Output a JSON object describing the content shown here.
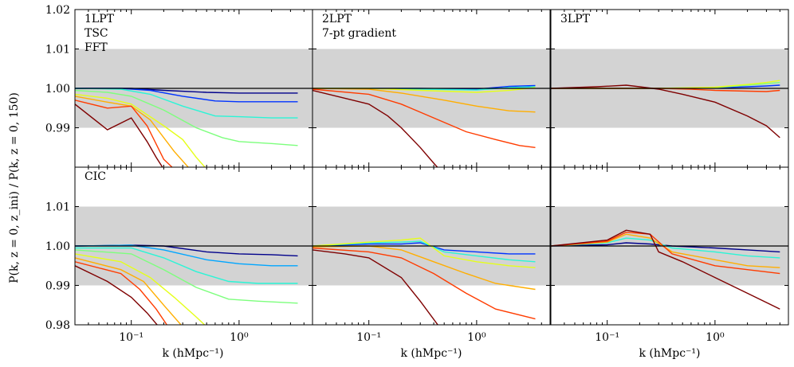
{
  "figure": {
    "ylabel": "P(k, z = 0, z_ini) / P(k, z = 0, 150)",
    "xlabel": "k (hMpc⁻¹)",
    "band_color": "#d3d3d3",
    "reference_line_color": "#000000",
    "colormap": "jet"
  },
  "chart_data": {
    "type": "line",
    "layout": "2x3 panel grid, shared axes",
    "xscale": "log",
    "xlim": [
      0.03,
      4.8
    ],
    "xticks": [
      0.1,
      1
    ],
    "xtick_labels": [
      "10⁻¹",
      "10⁰"
    ],
    "top_row": {
      "ylim": [
        0.98,
        1.02
      ],
      "yticks": [
        1.02,
        1.01,
        1.0,
        0.99
      ],
      "ytick_labels": [
        "1.02",
        "1.01",
        "1.00",
        "0.99"
      ]
    },
    "bottom_row": {
      "ylim": [
        0.98,
        1.02
      ],
      "yticks": [
        1.01,
        1.0,
        0.99,
        0.98
      ],
      "ytick_labels": [
        "1.01",
        "1.00",
        "0.99",
        "0.98"
      ]
    },
    "shaded_band": [
      0.99,
      1.01
    ],
    "reference_y": 1.0,
    "series_colors": [
      "#00008b",
      "#0033ff",
      "#00a6ff",
      "#2af5d6",
      "#7dff7d",
      "#e5ff1a",
      "#ffae00",
      "#ff3c00",
      "#c00000",
      "#7f0000"
    ],
    "panels": [
      {
        "id": "top-1lpt",
        "row": 0,
        "col": 0,
        "label_lines": [
          "1LPT",
          "TSC",
          "FFT"
        ],
        "series": [
          {
            "color_index": 0,
            "x": [
              0.03,
              0.1,
              0.2,
              0.5,
              1,
              2,
              3.5
            ],
            "y": [
              1.0,
              1.0,
              0.9995,
              0.999,
              0.9988,
              0.9988,
              0.9988
            ]
          },
          {
            "color_index": 1,
            "x": [
              0.03,
              0.08,
              0.15,
              0.3,
              0.6,
              1,
              2,
              3.5
            ],
            "y": [
              1.0,
              1.0,
              0.9995,
              0.998,
              0.9968,
              0.9966,
              0.9966,
              0.9966
            ]
          },
          {
            "color_index": 3,
            "x": [
              0.03,
              0.08,
              0.15,
              0.3,
              0.6,
              1,
              2,
              3.5
            ],
            "y": [
              1.0,
              0.9998,
              0.9985,
              0.9955,
              0.993,
              0.9928,
              0.9925,
              0.9925
            ]
          },
          {
            "color_index": 4,
            "x": [
              0.03,
              0.06,
              0.1,
              0.2,
              0.4,
              0.7,
              1,
              2,
              3.5
            ],
            "y": [
              0.9995,
              0.999,
              0.998,
              0.9945,
              0.99,
              0.9875,
              0.9865,
              0.986,
              0.9855
            ]
          },
          {
            "color_index": 5,
            "x": [
              0.03,
              0.06,
              0.1,
              0.2,
              0.3,
              0.4,
              0.5
            ],
            "y": [
              0.9985,
              0.9975,
              0.996,
              0.9905,
              0.987,
              0.9825,
              0.9795
            ]
          },
          {
            "color_index": 6,
            "x": [
              0.03,
              0.06,
              0.1,
              0.15,
              0.25,
              0.35
            ],
            "y": [
              0.998,
              0.9965,
              0.9955,
              0.992,
              0.984,
              0.9795
            ]
          },
          {
            "color_index": 7,
            "x": [
              0.03,
              0.06,
              0.1,
              0.14,
              0.2,
              0.25
            ],
            "y": [
              0.997,
              0.995,
              0.9955,
              0.9905,
              0.982,
              0.9795
            ]
          },
          {
            "color_index": 9,
            "x": [
              0.03,
              0.06,
              0.1,
              0.14,
              0.17,
              0.2
            ],
            "y": [
              0.996,
              0.9895,
              0.9925,
              0.9865,
              0.9825,
              0.9795
            ]
          }
        ]
      },
      {
        "id": "top-2lpt",
        "row": 0,
        "col": 1,
        "label_lines": [
          "2LPT",
          "7-pt gradient"
        ],
        "series": [
          {
            "color_index": 1,
            "x": [
              0.03,
              0.1,
              0.3,
              1,
              2,
              3.5
            ],
            "y": [
              1.0,
              1.0,
              1.0,
              0.9998,
              1.0005,
              1.0007
            ]
          },
          {
            "color_index": 3,
            "x": [
              0.03,
              0.1,
              0.3,
              1,
              2,
              3.5
            ],
            "y": [
              1.0,
              1.0,
              0.9998,
              0.9996,
              1.0002,
              1.0004
            ]
          },
          {
            "color_index": 5,
            "x": [
              0.03,
              0.1,
              0.3,
              1,
              2,
              3.5
            ],
            "y": [
              1.0,
              1.0,
              0.9995,
              0.999,
              0.9995,
              1.0002
            ]
          },
          {
            "color_index": 6,
            "x": [
              0.03,
              0.1,
              0.2,
              0.5,
              1,
              2,
              3.5
            ],
            "y": [
              1.0,
              0.9998,
              0.9988,
              0.997,
              0.9955,
              0.9943,
              0.994
            ]
          },
          {
            "color_index": 7,
            "x": [
              0.03,
              0.1,
              0.2,
              0.4,
              0.8,
              1.5,
              2.5,
              3.5
            ],
            "y": [
              0.9998,
              0.9985,
              0.996,
              0.9925,
              0.989,
              0.987,
              0.9855,
              0.985
            ]
          },
          {
            "color_index": 9,
            "x": [
              0.03,
              0.06,
              0.1,
              0.15,
              0.2,
              0.3,
              0.4,
              0.45
            ],
            "y": [
              0.9995,
              0.9975,
              0.996,
              0.993,
              0.99,
              0.985,
              0.981,
              0.9795
            ]
          }
        ]
      },
      {
        "id": "top-3lpt",
        "row": 0,
        "col": 2,
        "label_lines": [
          "3LPT"
        ],
        "series": [
          {
            "color_index": 1,
            "x": [
              0.03,
              0.3,
              1,
              2,
              3,
              4
            ],
            "y": [
              1.0,
              1.0,
              1.0001,
              1.0004,
              1.0006,
              1.0008
            ]
          },
          {
            "color_index": 4,
            "x": [
              0.03,
              0.3,
              1,
              2,
              3,
              4
            ],
            "y": [
              1.0,
              1.0,
              1.0002,
              1.0008,
              1.0012,
              1.0015
            ]
          },
          {
            "color_index": 5,
            "x": [
              0.03,
              0.3,
              1,
              2,
              3,
              4
            ],
            "y": [
              1.0,
              1.0,
              1.0003,
              1.001,
              1.0015,
              1.002
            ]
          },
          {
            "color_index": 7,
            "x": [
              0.03,
              0.3,
              0.6,
              1,
              2,
              3,
              4
            ],
            "y": [
              1.0,
              1.0,
              0.9998,
              0.9995,
              0.9993,
              0.9992,
              0.9995
            ]
          },
          {
            "color_index": 9,
            "x": [
              0.03,
              0.08,
              0.15,
              0.2,
              0.3,
              0.5,
              1,
              2,
              3,
              4
            ],
            "y": [
              1.0,
              1.0004,
              1.0008,
              1.0004,
              0.9998,
              0.9985,
              0.9965,
              0.993,
              0.9905,
              0.9875
            ]
          }
        ]
      },
      {
        "id": "bottom-1lpt",
        "row": 1,
        "col": 0,
        "label_lines": [
          "CIC"
        ],
        "series": [
          {
            "color_index": 0,
            "x": [
              0.03,
              0.1,
              0.2,
              0.5,
              1,
              2,
              3.5
            ],
            "y": [
              1.0,
              1.0002,
              1.0,
              0.9985,
              0.998,
              0.9978,
              0.9975
            ]
          },
          {
            "color_index": 2,
            "x": [
              0.03,
              0.1,
              0.2,
              0.5,
              1,
              2,
              3.5
            ],
            "y": [
              1.0,
              1.0002,
              0.999,
              0.9965,
              0.9955,
              0.995,
              0.995
            ]
          },
          {
            "color_index": 3,
            "x": [
              0.03,
              0.1,
              0.2,
              0.4,
              0.8,
              1.5,
              3.5
            ],
            "y": [
              0.9995,
              0.9995,
              0.997,
              0.9935,
              0.991,
              0.9905,
              0.9905
            ]
          },
          {
            "color_index": 4,
            "x": [
              0.03,
              0.1,
              0.2,
              0.4,
              0.8,
              1.5,
              3.5
            ],
            "y": [
              0.999,
              0.998,
              0.994,
              0.9895,
              0.9865,
              0.986,
              0.9855
            ]
          },
          {
            "color_index": 5,
            "x": [
              0.03,
              0.08,
              0.15,
              0.25,
              0.4,
              0.5
            ],
            "y": [
              0.998,
              0.996,
              0.992,
              0.987,
              0.982,
              0.9795
            ]
          },
          {
            "color_index": 6,
            "x": [
              0.03,
              0.08,
              0.13,
              0.2,
              0.3
            ],
            "y": [
              0.997,
              0.994,
              0.991,
              0.985,
              0.9795
            ]
          },
          {
            "color_index": 7,
            "x": [
              0.03,
              0.08,
              0.12,
              0.17,
              0.22
            ],
            "y": [
              0.996,
              0.993,
              0.989,
              0.984,
              0.9795
            ]
          },
          {
            "color_index": 9,
            "x": [
              0.03,
              0.06,
              0.1,
              0.14,
              0.18
            ],
            "y": [
              0.995,
              0.991,
              0.987,
              0.983,
              0.9795
            ]
          }
        ]
      },
      {
        "id": "bottom-2lpt",
        "row": 1,
        "col": 1,
        "label_lines": [],
        "series": [
          {
            "color_index": 1,
            "x": [
              0.03,
              0.1,
              0.2,
              0.3,
              0.5,
              1,
              2,
              3.5
            ],
            "y": [
              1.0,
              1.0005,
              1.0005,
              1.0008,
              0.999,
              0.9985,
              0.998,
              0.998
            ]
          },
          {
            "color_index": 3,
            "x": [
              0.03,
              0.1,
              0.2,
              0.3,
              0.5,
              1,
              2,
              3.5
            ],
            "y": [
              1.0,
              1.0008,
              1.001,
              1.0012,
              0.9985,
              0.9975,
              0.9965,
              0.996
            ]
          },
          {
            "color_index": 5,
            "x": [
              0.03,
              0.1,
              0.2,
              0.3,
              0.5,
              1,
              2,
              3.5
            ],
            "y": [
              1.0,
              1.001,
              1.0015,
              1.002,
              0.9975,
              0.996,
              0.995,
              0.9945
            ]
          },
          {
            "color_index": 6,
            "x": [
              0.03,
              0.1,
              0.2,
              0.4,
              0.8,
              1.5,
              3.5
            ],
            "y": [
              0.9998,
              1.0,
              0.999,
              0.996,
              0.993,
              0.9905,
              0.989
            ]
          },
          {
            "color_index": 7,
            "x": [
              0.03,
              0.1,
              0.2,
              0.4,
              0.8,
              1.5,
              3.5
            ],
            "y": [
              0.9995,
              0.9985,
              0.997,
              0.993,
              0.988,
              0.984,
              0.9815
            ]
          },
          {
            "color_index": 9,
            "x": [
              0.03,
              0.06,
              0.1,
              0.2,
              0.3,
              0.45
            ],
            "y": [
              0.999,
              0.998,
              0.997,
              0.992,
              0.986,
              0.9795
            ]
          }
        ]
      },
      {
        "id": "bottom-3lpt",
        "row": 1,
        "col": 2,
        "label_lines": [],
        "series": [
          {
            "color_index": 0,
            "x": [
              0.03,
              0.1,
              0.15,
              0.25,
              0.4,
              1,
              2,
              4
            ],
            "y": [
              1.0,
              1.0003,
              1.0008,
              1.0005,
              1.0,
              0.9995,
              0.999,
              0.9985
            ]
          },
          {
            "color_index": 3,
            "x": [
              0.03,
              0.1,
              0.15,
              0.25,
              0.4,
              1,
              2,
              4
            ],
            "y": [
              1.0,
              1.0008,
              1.002,
              1.0015,
              0.9995,
              0.9985,
              0.9975,
              0.997
            ]
          },
          {
            "color_index": 6,
            "x": [
              0.03,
              0.1,
              0.15,
              0.25,
              0.4,
              1,
              2,
              4
            ],
            "y": [
              1.0,
              1.001,
              1.003,
              1.002,
              0.9985,
              0.9965,
              0.995,
              0.9945
            ]
          },
          {
            "color_index": 7,
            "x": [
              0.03,
              0.1,
              0.15,
              0.25,
              0.4,
              1,
              2,
              4
            ],
            "y": [
              1.0,
              1.0012,
              1.0035,
              1.003,
              0.998,
              0.995,
              0.994,
              0.993
            ]
          },
          {
            "color_index": 9,
            "x": [
              0.03,
              0.1,
              0.15,
              0.25,
              0.3,
              0.5,
              1,
              2,
              4
            ],
            "y": [
              1.0,
              1.0015,
              1.004,
              1.003,
              0.9985,
              0.996,
              0.992,
              0.988,
              0.984
            ]
          }
        ]
      }
    ]
  }
}
